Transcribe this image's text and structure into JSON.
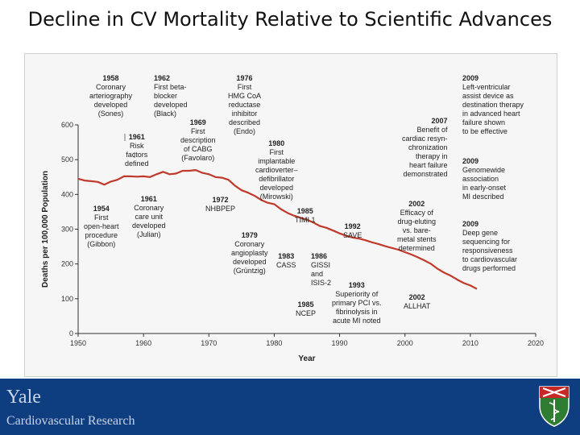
{
  "slide": {
    "title": "Decline in CV Mortality Relative to Scientific Advances"
  },
  "footer": {
    "name": "Yale",
    "dept": "Cardiovascular Research",
    "bg_color": "#0f3e80",
    "logo_icon": "yale-medicine-shield-icon"
  },
  "chart_data": {
    "type": "line",
    "xlabel": "Year",
    "ylabel": "Deaths per 100,000 Population",
    "xlim": [
      1950,
      2020
    ],
    "ylim": [
      0,
      600
    ],
    "x_ticks": [
      1950,
      1960,
      1970,
      1980,
      1990,
      2000,
      2010,
      2020
    ],
    "y_ticks": [
      0,
      100,
      200,
      300,
      400,
      500,
      600
    ],
    "line_color": "#c0392b",
    "grid": false,
    "series": [
      {
        "x": [
          1950,
          1951,
          1952,
          1953,
          1954,
          1955,
          1956,
          1957,
          1958,
          1959,
          1960,
          1961,
          1962,
          1963,
          1964,
          1965,
          1966,
          1967,
          1968,
          1969,
          1970,
          1971,
          1972,
          1973,
          1974,
          1975,
          1976,
          1977,
          1978,
          1979,
          1980,
          1981,
          1982,
          1983,
          1984,
          1985,
          1986,
          1987,
          1988,
          1989,
          1990,
          1991,
          1992,
          1993,
          1994,
          1995,
          1996,
          1997,
          1998,
          1999,
          2000,
          2001,
          2002,
          2003,
          2004,
          2005,
          2006,
          2007,
          2008,
          2009,
          2010,
          2011
        ],
        "y": [
          445,
          440,
          438,
          436,
          428,
          437,
          442,
          452,
          452,
          451,
          452,
          450,
          458,
          465,
          458,
          460,
          468,
          468,
          470,
          462,
          458,
          450,
          448,
          442,
          425,
          412,
          405,
          396,
          384,
          376,
          372,
          358,
          347,
          339,
          333,
          327,
          319,
          309,
          304,
          296,
          288,
          281,
          276,
          273,
          268,
          262,
          257,
          251,
          246,
          241,
          234,
          227,
          219,
          210,
          200,
          186,
          175,
          166,
          155,
          145,
          138,
          128
        ]
      }
    ],
    "annotations": [
      {
        "year": "1958",
        "text": "Coronary\narteriography\ndeveloped\n(Sones)"
      },
      {
        "year": "1962",
        "text": "First beta-\nblocker\ndeveloped\n(Black)"
      },
      {
        "year": "1976",
        "text": "First\nHMG CoA\nreductase\ninhibitor\ndescribed\n(Endo)"
      },
      {
        "year": "1969",
        "text": "First\ndescription\nof CABG\n(Favolaro)"
      },
      {
        "year": "1961",
        "text": "Risk\nfactors\ndefined"
      },
      {
        "year": "1980",
        "text": "First\nimplantable\ncardioverter–\ndefibrillator\ndeveloped\n(Mirowski)"
      },
      {
        "year": "2007",
        "text": "Benefit of\ncardiac resyn-\nchronization\ntherapy in\nheart failure\ndemonstrated"
      },
      {
        "year": "2009",
        "text": "Left-ventricular\nassist device as\ndestination therapy\nin advanced heart\nfailure shown\nto be effective"
      },
      {
        "year": "2009",
        "text": "Genomewide\nassociation\nin early-onset\nMI described"
      },
      {
        "year": "2009",
        "text": "Deep gene\nsequencing for\nresponsiveness\nto cardiovascular\ndrugs performed"
      },
      {
        "year": "1954",
        "text": "First\nopen-heart\nprocedure\n(Gibbon)"
      },
      {
        "year": "1961",
        "text": "Coronary\ncare unit\ndeveloped\n(Julian)"
      },
      {
        "year": "1972",
        "text": "NHBPEP"
      },
      {
        "year": "1985",
        "text": "TIMI 1"
      },
      {
        "year": "1992",
        "text": "SAVE"
      },
      {
        "year": "2002",
        "text": "Efficacy of\ndrug-eluting\nvs. bare-\nmetal stents\ndetermined"
      },
      {
        "year": "1979",
        "text": "Coronary\nangioplasty\ndeveloped\n(Grüntzig)"
      },
      {
        "year": "1983",
        "text": "CASS"
      },
      {
        "year": "1986",
        "text": "GISSI\nand\nISIS-2"
      },
      {
        "year": "1993",
        "text": "Superiority of\nprimary PCI vs.\nfibrinolysis in\nacute MI noted"
      },
      {
        "year": "1985",
        "text": "NCEP"
      },
      {
        "year": "2002",
        "text": "ALLHAT"
      }
    ]
  }
}
